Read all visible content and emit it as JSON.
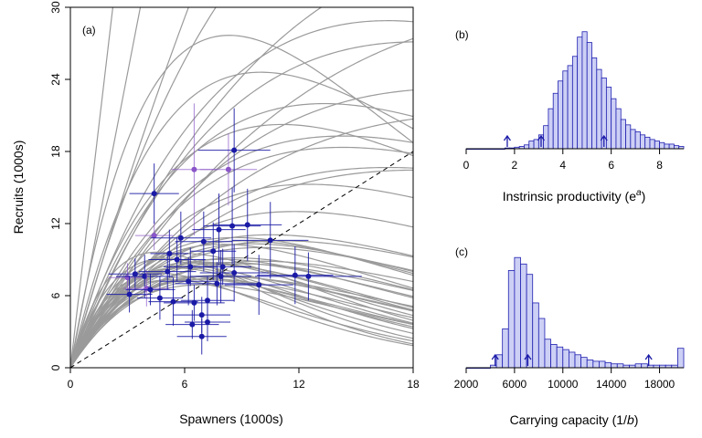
{
  "colors": {
    "point": "#1a1aa6",
    "point_alt": "#8a55c8",
    "curve": "#9a9a9a",
    "bar_fill": "#cdd0f5",
    "bar_edge": "#1f1fb0"
  },
  "chart_data": [
    {
      "type": "scatter",
      "panel_label": "(a)",
      "xlabel": "Spawners (1000s)",
      "ylabel": "Recruits (1000s)",
      "xlim": [
        0,
        18
      ],
      "ylim": [
        0,
        30
      ],
      "xticks": [
        "0",
        "6",
        "12",
        "18"
      ],
      "yticks": [
        "0",
        "6",
        "12",
        "18",
        "24",
        "30"
      ],
      "replacement_line": {
        "style": "dashed",
        "x": [
          0,
          18
        ],
        "y": [
          0,
          18
        ]
      },
      "ricker_curves": [
        {
          "a": 1.55,
          "b": 0.06
        },
        {
          "a": 1.4,
          "b": 0.055
        },
        {
          "a": 1.3,
          "b": 0.07
        },
        {
          "a": 1.2,
          "b": 0.08
        },
        {
          "a": 1.1,
          "b": 0.085
        },
        {
          "a": 1.05,
          "b": 0.095
        },
        {
          "a": 1.0,
          "b": 0.1
        },
        {
          "a": 1.15,
          "b": 0.11
        },
        {
          "a": 1.25,
          "b": 0.125
        },
        {
          "a": 1.05,
          "b": 0.12
        },
        {
          "a": 0.95,
          "b": 0.11
        },
        {
          "a": 1.0,
          "b": 0.13
        },
        {
          "a": 1.2,
          "b": 0.14
        },
        {
          "a": 1.1,
          "b": 0.15
        },
        {
          "a": 1.3,
          "b": 0.16
        },
        {
          "a": 0.9,
          "b": 0.12
        },
        {
          "a": 1.15,
          "b": 0.135
        },
        {
          "a": 1.35,
          "b": 0.17
        },
        {
          "a": 1.0,
          "b": 0.145
        },
        {
          "a": 1.4,
          "b": 0.18
        },
        {
          "a": 1.6,
          "b": 0.2
        },
        {
          "a": 1.75,
          "b": 0.22
        },
        {
          "a": 0.95,
          "b": 0.09
        },
        {
          "a": 1.08,
          "b": 0.105
        },
        {
          "a": 1.22,
          "b": 0.115
        },
        {
          "a": 1.12,
          "b": 0.125
        },
        {
          "a": 1.02,
          "b": 0.138
        },
        {
          "a": 1.28,
          "b": 0.15
        },
        {
          "a": 1.18,
          "b": 0.158
        },
        {
          "a": 1.45,
          "b": 0.165
        },
        {
          "a": 0.88,
          "b": 0.1
        },
        {
          "a": 1.05,
          "b": 0.115
        },
        {
          "a": 1.33,
          "b": 0.19
        },
        {
          "a": 0.98,
          "b": 0.128
        },
        {
          "a": 1.5,
          "b": 0.21
        },
        {
          "a": 1.25,
          "b": 0.07
        },
        {
          "a": 1.6,
          "b": 0.09
        },
        {
          "a": 1.0,
          "b": 0.06
        },
        {
          "a": 0.95,
          "b": 0.045
        },
        {
          "a": 1.05,
          "b": 0.035
        },
        {
          "a": 1.35,
          "b": 0.04
        },
        {
          "a": 1.9,
          "b": 0.1
        },
        {
          "a": 2.2,
          "b": 0.12
        },
        {
          "a": 1.75,
          "b": 0.05
        },
        {
          "a": 1.5,
          "b": 0.075
        },
        {
          "a": 1.15,
          "b": 0.05
        },
        {
          "a": 0.9,
          "b": 0.055
        },
        {
          "a": 2.6,
          "b": 0.0
        },
        {
          "a": 2.1,
          "b": 0.0
        },
        {
          "a": 1.7,
          "b": 0.02
        }
      ],
      "points": [
        {
          "x": 3.0,
          "y": 7.5,
          "xerr": 1.0,
          "yerr": 1.2,
          "alt": true
        },
        {
          "x": 3.1,
          "y": 6.1,
          "xerr": 1.2,
          "yerr": 1.5,
          "alt": false
        },
        {
          "x": 3.4,
          "y": 7.8,
          "xerr": 1.4,
          "yerr": 1.3,
          "alt": false
        },
        {
          "x": 3.9,
          "y": 7.6,
          "xerr": 1.5,
          "yerr": 1.8,
          "alt": false
        },
        {
          "x": 4.0,
          "y": 6.6,
          "xerr": 1.2,
          "yerr": 1.5,
          "alt": true
        },
        {
          "x": 4.2,
          "y": 6.5,
          "xerr": 1.3,
          "yerr": 1.3,
          "alt": false
        },
        {
          "x": 4.4,
          "y": 11.0,
          "xerr": 1.0,
          "yerr": 1.2,
          "alt": true
        },
        {
          "x": 4.4,
          "y": 14.5,
          "xerr": 1.3,
          "yerr": 2.5,
          "alt": false
        },
        {
          "x": 4.7,
          "y": 5.8,
          "xerr": 1.2,
          "yerr": 1.8,
          "alt": false
        },
        {
          "x": 5.1,
          "y": 8.0,
          "xerr": 1.5,
          "yerr": 1.5,
          "alt": false
        },
        {
          "x": 5.2,
          "y": 9.5,
          "xerr": 1.0,
          "yerr": 2.0,
          "alt": false
        },
        {
          "x": 5.4,
          "y": 5.5,
          "xerr": 1.3,
          "yerr": 2.0,
          "alt": false
        },
        {
          "x": 5.6,
          "y": 9.0,
          "xerr": 1.5,
          "yerr": 1.8,
          "alt": false
        },
        {
          "x": 5.8,
          "y": 10.8,
          "xerr": 1.6,
          "yerr": 2.2,
          "alt": false
        },
        {
          "x": 6.2,
          "y": 7.2,
          "xerr": 1.5,
          "yerr": 2.0,
          "alt": false
        },
        {
          "x": 6.3,
          "y": 8.4,
          "xerr": 1.4,
          "yerr": 1.6,
          "alt": false
        },
        {
          "x": 6.4,
          "y": 3.6,
          "xerr": 1.4,
          "yerr": 1.2,
          "alt": false
        },
        {
          "x": 6.5,
          "y": 5.4,
          "xerr": 1.6,
          "yerr": 1.5,
          "alt": false
        },
        {
          "x": 6.5,
          "y": 16.5,
          "xerr": 1.2,
          "yerr": 5.5,
          "alt": true
        },
        {
          "x": 6.9,
          "y": 2.6,
          "xerr": 1.3,
          "yerr": 1.5,
          "alt": false
        },
        {
          "x": 6.9,
          "y": 4.4,
          "xerr": 1.5,
          "yerr": 1.5,
          "alt": false
        },
        {
          "x": 7.0,
          "y": 10.5,
          "xerr": 1.5,
          "yerr": 2.5,
          "alt": false
        },
        {
          "x": 7.2,
          "y": 3.8,
          "xerr": 1.2,
          "yerr": 1.6,
          "alt": false
        },
        {
          "x": 7.2,
          "y": 5.6,
          "xerr": 1.4,
          "yerr": 2.0,
          "alt": false
        },
        {
          "x": 7.5,
          "y": 9.7,
          "xerr": 1.2,
          "yerr": 2.4,
          "alt": false
        },
        {
          "x": 7.7,
          "y": 7.0,
          "xerr": 2.2,
          "yerr": 1.8,
          "alt": false
        },
        {
          "x": 7.8,
          "y": 11.5,
          "xerr": 1.4,
          "yerr": 3.0,
          "alt": false
        },
        {
          "x": 7.9,
          "y": 7.6,
          "xerr": 1.6,
          "yerr": 2.2,
          "alt": false
        },
        {
          "x": 8.0,
          "y": 8.4,
          "xerr": 1.5,
          "yerr": 1.5,
          "alt": false
        },
        {
          "x": 8.3,
          "y": 16.5,
          "xerr": 1.5,
          "yerr": 3.0,
          "alt": true
        },
        {
          "x": 8.5,
          "y": 11.8,
          "xerr": 1.5,
          "yerr": 3.2,
          "alt": false
        },
        {
          "x": 8.6,
          "y": 18.1,
          "xerr": 1.9,
          "yerr": 3.5,
          "alt": false
        },
        {
          "x": 8.6,
          "y": 7.9,
          "xerr": 1.8,
          "yerr": 2.4,
          "alt": false
        },
        {
          "x": 9.3,
          "y": 11.9,
          "xerr": 1.8,
          "yerr": 3.0,
          "alt": false
        },
        {
          "x": 9.9,
          "y": 6.9,
          "xerr": 1.8,
          "yerr": 2.5,
          "alt": false
        },
        {
          "x": 10.5,
          "y": 10.6,
          "xerr": 2.0,
          "yerr": 3.2,
          "alt": false
        },
        {
          "x": 11.8,
          "y": 7.7,
          "xerr": 2.0,
          "yerr": 2.4,
          "alt": false
        },
        {
          "x": 12.5,
          "y": 7.6,
          "xerr": 2.8,
          "yerr": 2.0,
          "alt": false
        }
      ]
    },
    {
      "type": "bar",
      "panel_label": "(b)",
      "xlabel_text": "Instrinsic productivity (e",
      "xlabel_sup": "a",
      "xlabel_close": ")",
      "xlim": [
        0,
        9
      ],
      "xticks": [
        "0",
        "2",
        "4",
        "6",
        "8"
      ],
      "bin_width": 0.2,
      "bin_start": 0,
      "counts": [
        0,
        0,
        0,
        0,
        0,
        0,
        0,
        0,
        1,
        1,
        2,
        3,
        5,
        10,
        12,
        18,
        30,
        52,
        72,
        88,
        101,
        108,
        120,
        145,
        152,
        138,
        118,
        103,
        92,
        80,
        65,
        52,
        38,
        31,
        25,
        22,
        18,
        15,
        12,
        10,
        8,
        6,
        6,
        4,
        3,
        3,
        2,
        2,
        1,
        1,
        1,
        1,
        1,
        1,
        1,
        1,
        0,
        0,
        0,
        0,
        0,
        0,
        0,
        0,
        0,
        0,
        0,
        0,
        0,
        0,
        0,
        0,
        0,
        0,
        0,
        0,
        0,
        0,
        0,
        0,
        0,
        0,
        0,
        0,
        0,
        0,
        0,
        0,
        0,
        0
      ],
      "max_count": 160,
      "arrows": [
        1.7,
        3.1,
        5.7
      ]
    },
    {
      "type": "bar",
      "panel_label": "(c)",
      "xlabel_text": "Carrying capacity (1/",
      "xlabel_italic": "b",
      "xlabel_close": ")",
      "xlim": [
        2000,
        20000
      ],
      "xticks": [
        "2000",
        "6000",
        "10000",
        "14000",
        "18000"
      ],
      "bin_width": 500,
      "bin_start": 2000,
      "counts": [
        0,
        0,
        0,
        0,
        2,
        10,
        30,
        75,
        85,
        80,
        72,
        50,
        38,
        22,
        18,
        16,
        14,
        12,
        10,
        8,
        6,
        5,
        5,
        4,
        3,
        3,
        2,
        2,
        3,
        3,
        2,
        2,
        2,
        2,
        2,
        15
      ],
      "max_count": 95,
      "arrows": [
        4400,
        7100,
        17100
      ]
    }
  ]
}
